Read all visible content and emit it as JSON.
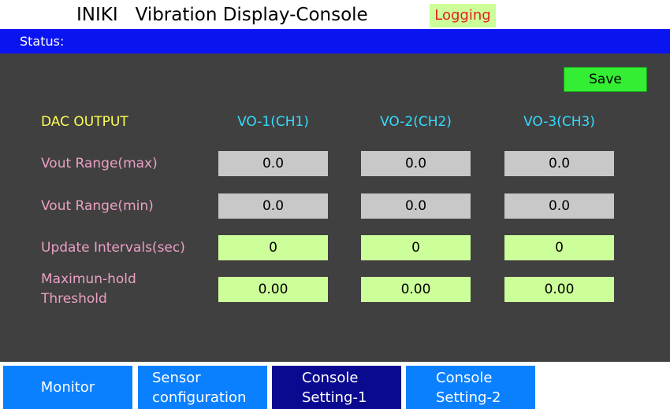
{
  "header": {
    "title": "INIKI   Vibration Display-Console",
    "badge": "Logging"
  },
  "status_bar": {
    "label": "Status:"
  },
  "save_button": {
    "label": "Save"
  },
  "table": {
    "header": [
      "DAC OUTPUT",
      "VO-1(CH1)",
      "VO-2(CH2)",
      "VO-3(CH3)"
    ],
    "rows": [
      {
        "label": "Vout Range(max)",
        "values": [
          "0.0",
          "0.0",
          "0.0"
        ]
      },
      {
        "label": "Vout Range(min)",
        "values": [
          "0.0",
          "0.0",
          "0.0"
        ]
      },
      {
        "label": "Update Intervals(sec)",
        "values": [
          "0",
          "0",
          "0"
        ]
      },
      {
        "label": "Maximun-hold Threshold",
        "values": [
          "0.00",
          "0.00",
          "0.00"
        ]
      }
    ]
  },
  "tabs": [
    "Monitor",
    "Sensor configuration",
    "Console Setting-1",
    "Console Setting-2"
  ]
}
